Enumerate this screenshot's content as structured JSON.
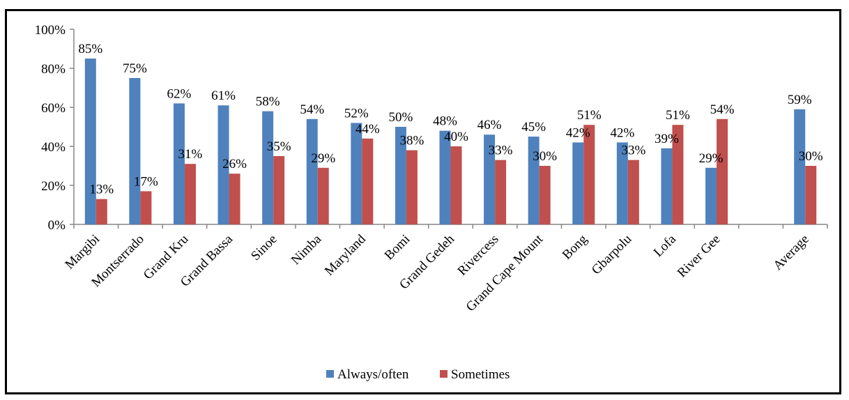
{
  "chart_data": {
    "type": "bar",
    "title": "",
    "xlabel": "",
    "ylabel": "",
    "ylim": [
      0,
      1
    ],
    "yticks": [
      "0%",
      "20%",
      "40%",
      "60%",
      "80%",
      "100%"
    ],
    "categories": [
      "Margibi",
      "Montserrado",
      "Grand Kru",
      "Grand Bassa",
      "Sinoe",
      "Nimba",
      "Maryland",
      "Bomi",
      "Grand Gedeh",
      "Rivercess",
      "Grand Cape Mount",
      "Bong",
      "Gbarpolu",
      "Lofa",
      "River Gee",
      "",
      "Average"
    ],
    "series": [
      {
        "name": "Always/often",
        "color": "#4f81bd",
        "values": [
          0.85,
          0.75,
          0.62,
          0.61,
          0.58,
          0.54,
          0.52,
          0.5,
          0.48,
          0.46,
          0.45,
          0.42,
          0.42,
          0.39,
          0.29,
          null,
          0.59
        ],
        "labels": [
          "85%",
          "75%",
          "62%",
          "61%",
          "58%",
          "54%",
          "52%",
          "50%",
          "48%",
          "46%",
          "45%",
          "42%",
          "42%",
          "39%",
          "29%",
          "",
          "59%"
        ]
      },
      {
        "name": "Sometimes",
        "color": "#c0504d",
        "values": [
          0.13,
          0.17,
          0.31,
          0.26,
          0.35,
          0.29,
          0.44,
          0.38,
          0.4,
          0.33,
          0.3,
          0.51,
          0.33,
          0.51,
          0.54,
          null,
          0.3
        ],
        "labels": [
          "13%",
          "17%",
          "31%",
          "26%",
          "35%",
          "29%",
          "44%",
          "38%",
          "40%",
          "33%",
          "30%",
          "51%",
          "33%",
          "51%",
          "54%",
          "",
          "30%"
        ]
      }
    ],
    "grid": false,
    "legend_position": "bottom"
  }
}
